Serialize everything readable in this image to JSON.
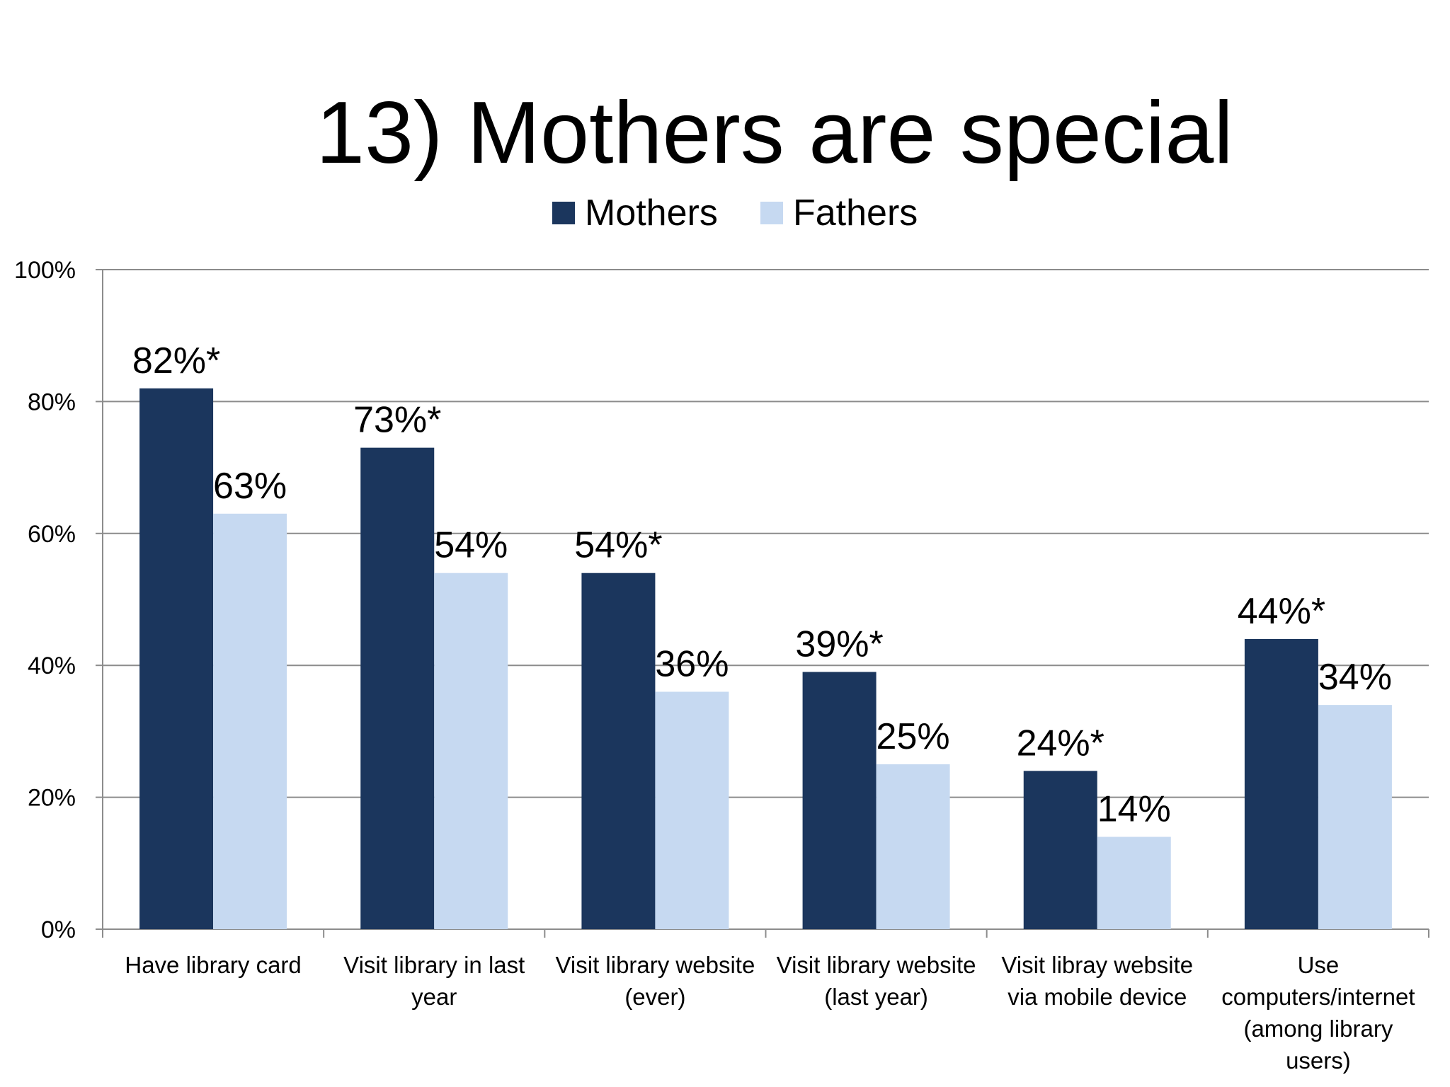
{
  "chart_data": {
    "type": "bar",
    "title": "13) Mothers are special",
    "xlabel": "",
    "ylabel": "",
    "ylim": [
      0,
      100
    ],
    "y_ticks": [
      "0%",
      "20%",
      "40%",
      "60%",
      "80%",
      "100%"
    ],
    "y_tick_values": [
      0,
      20,
      40,
      60,
      80,
      100
    ],
    "grid": true,
    "legend_position": "top",
    "categories": [
      [
        "Have library card"
      ],
      [
        "Visit library in last",
        "year"
      ],
      [
        "Visit library website",
        "(ever)"
      ],
      [
        "Visit library website",
        "(last year)"
      ],
      [
        "Visit libray website",
        "via mobile device"
      ],
      [
        "Use",
        "computers/internet",
        "(among library",
        "users)"
      ]
    ],
    "series": [
      {
        "name": "Mothers",
        "color": "#1b365d",
        "values": [
          82,
          73,
          54,
          39,
          24,
          44
        ],
        "labels": [
          "82%*",
          "73%*",
          "54%*",
          "39%*",
          "24%*",
          "44%*"
        ]
      },
      {
        "name": "Fathers",
        "color": "#c6d9f1",
        "values": [
          63,
          54,
          36,
          25,
          14,
          34
        ],
        "labels": [
          "63%",
          "54%",
          "36%",
          "25%",
          "14%",
          "34%"
        ]
      }
    ]
  }
}
